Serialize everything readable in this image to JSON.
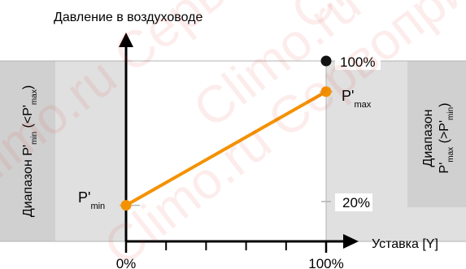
{
  "chart_data": {
    "type": "line",
    "title": "",
    "ylabel": "Давление в воздуховоде",
    "xlabel": "Уставка [Y]",
    "x_ticks": [
      "0%",
      "100%"
    ],
    "y_ticks": [
      "100%",
      "20%"
    ],
    "xlim": [
      0,
      100
    ],
    "ylim": [
      0,
      130
    ],
    "x_minor_ticks": [
      20,
      40,
      60,
      80
    ],
    "grid": false,
    "series": [
      {
        "name": "",
        "x": [
          0,
          100
        ],
        "y": [
          20,
          83
        ],
        "color": "#f39200"
      }
    ],
    "reference_point": {
      "x": 100,
      "y": 100,
      "color": "#111111"
    },
    "point_labels": {
      "low": {
        "base": "P'",
        "sub": "min"
      },
      "high": {
        "base": "P'",
        "sub": "max"
      }
    },
    "bands": {
      "left": {
        "word": "Диапазон",
        "base": "P'",
        "sub": "min",
        "op": "(<P'",
        "op_sub": "max",
        "close": ")"
      },
      "right": {
        "word": "Диапазон",
        "base": "P'",
        "sub": "max",
        "op": "(>P'",
        "op_sub": "min",
        "close": ")"
      }
    },
    "watermark": "Climo.ru Сервопривод",
    "colors": {
      "band": "#e0e0e0",
      "axis": "#000000",
      "line": "#f39200",
      "guide": "#b3b3b3"
    }
  }
}
